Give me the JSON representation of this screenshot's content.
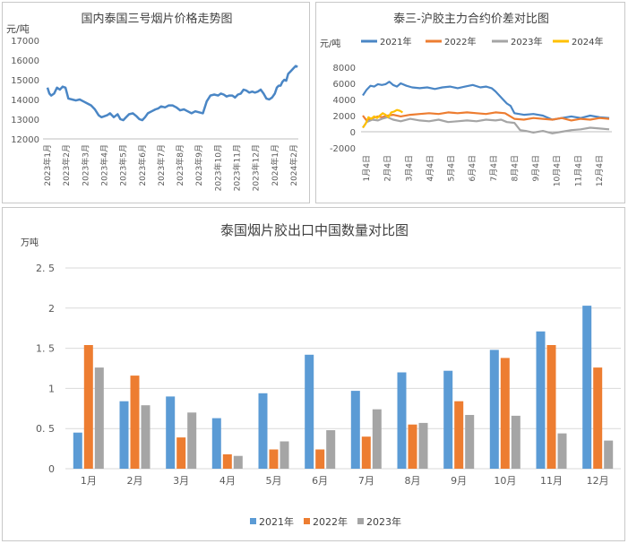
{
  "chart_data": [
    {
      "type": "line",
      "title": "国内泰国三号烟片价格走势图",
      "ylabel": "元/吨",
      "ylim": [
        12000,
        17000
      ],
      "y_ticks": [
        "17000",
        "16000",
        "15000",
        "14000",
        "13000",
        "12000"
      ],
      "x_ticks": [
        "2023年1月",
        "2023年2月",
        "2023年3月",
        "2023年4月",
        "2023年5月",
        "2023年6月",
        "2023年7月",
        "2023年8月",
        "2023年9月",
        "2023年10月",
        "2023年11月",
        "2023年12月",
        "2024年1月",
        "2024年2月"
      ],
      "series": [
        {
          "color": "#4a86c5",
          "x": [
            0,
            0.1,
            0.2,
            0.35,
            0.5,
            0.65,
            0.8,
            0.95,
            1.1,
            1.3,
            1.5,
            1.7,
            1.9,
            2.1,
            2.3,
            2.5,
            2.7,
            2.85,
            3.0,
            3.15,
            3.3,
            3.5,
            3.7,
            3.85,
            4.0,
            4.15,
            4.3,
            4.5,
            4.7,
            4.85,
            5.0,
            5.15,
            5.3,
            5.5,
            5.7,
            5.85,
            6.0,
            6.2,
            6.4,
            6.6,
            6.8,
            7.0,
            7.2,
            7.4,
            7.6,
            7.8,
            8.0,
            8.2,
            8.4,
            8.6,
            8.8,
            9.0,
            9.15,
            9.3,
            9.45,
            9.6,
            9.75,
            9.9,
            10.05,
            10.2,
            10.35,
            10.5,
            10.65,
            10.8,
            10.95,
            11.1,
            11.25,
            11.4,
            11.55,
            11.7,
            11.85,
            12.0,
            12.1,
            12.2,
            12.3,
            12.4,
            12.5,
            12.6,
            12.7,
            12.8,
            12.9,
            13.0,
            13.1,
            13.2
          ],
          "y": [
            14600,
            14300,
            14200,
            14300,
            14600,
            14500,
            14650,
            14600,
            14050,
            14000,
            13950,
            14000,
            13900,
            13800,
            13700,
            13500,
            13200,
            13100,
            13150,
            13200,
            13300,
            13100,
            13250,
            13000,
            12950,
            13100,
            13250,
            13300,
            13150,
            13000,
            12950,
            13100,
            13300,
            13400,
            13500,
            13550,
            13650,
            13600,
            13700,
            13700,
            13600,
            13450,
            13500,
            13400,
            13300,
            13400,
            13350,
            13300,
            13900,
            14200,
            14250,
            14200,
            14300,
            14250,
            14150,
            14200,
            14200,
            14100,
            14250,
            14300,
            14500,
            14450,
            14350,
            14400,
            14350,
            14400,
            14500,
            14300,
            14050,
            14000,
            14100,
            14300,
            14600,
            14700,
            14700,
            14900,
            15000,
            14950,
            15300,
            15400,
            15500,
            15600,
            15700,
            15650
          ]
        }
      ]
    },
    {
      "type": "line",
      "title": "泰三-沪胶主力合约价差对比图",
      "ylabel": "元/吨",
      "legend": "top",
      "ylim": [
        -2000,
        8000
      ],
      "y_ticks": [
        "8000",
        "6000",
        "4000",
        "2000",
        "0",
        "-2000"
      ],
      "x_ticks": [
        "1月4日",
        "2月4日",
        "3月4日",
        "4月4日",
        "5月4日",
        "6月4日",
        "7月4日",
        "8月4日",
        "9月4日",
        "10月4日",
        "11月4日",
        "12月4日"
      ],
      "series": [
        {
          "name": "2021年",
          "color": "#4a86c5",
          "x": [
            0,
            0.2,
            0.4,
            0.6,
            0.8,
            1.0,
            1.2,
            1.4,
            1.6,
            1.8,
            2.0,
            2.3,
            2.6,
            3.0,
            3.4,
            3.8,
            4.2,
            4.6,
            5.0,
            5.4,
            5.8,
            6.2,
            6.5,
            6.8,
            7.0,
            7.2,
            7.4,
            7.6,
            7.8,
            8.0,
            8.5,
            9.0,
            9.5,
            10.0,
            10.5,
            11.0,
            11.5,
            12.0,
            12.5,
            13.0
          ],
          "y": [
            4500,
            5200,
            5700,
            5600,
            5900,
            5800,
            5900,
            6200,
            5800,
            5600,
            6000,
            5700,
            5500,
            5400,
            5500,
            5300,
            5500,
            5600,
            5400,
            5600,
            5800,
            5500,
            5600,
            5400,
            5000,
            4500,
            4000,
            3500,
            3200,
            2300,
            2100,
            2200,
            2000,
            1500,
            1700,
            1900,
            1700,
            2000,
            1800,
            1700
          ]
        },
        {
          "name": "2022年",
          "color": "#ed7d31",
          "x": [
            0,
            0.2,
            0.5,
            0.8,
            1.0,
            1.3,
            1.6,
            2.0,
            2.5,
            3.0,
            3.5,
            4.0,
            4.5,
            5.0,
            5.5,
            6.0,
            6.5,
            7.0,
            7.5,
            8.0,
            8.5,
            9.0,
            9.5,
            10.0,
            10.5,
            11.0,
            11.5,
            12.0,
            12.5,
            13.0
          ],
          "y": [
            2000,
            1400,
            1700,
            1900,
            1800,
            2000,
            2100,
            1900,
            2100,
            2200,
            2300,
            2200,
            2400,
            2300,
            2400,
            2300,
            2200,
            2400,
            2300,
            1600,
            1500,
            1700,
            1600,
            1500,
            1700,
            1400,
            1600,
            1500,
            1700,
            1600
          ]
        },
        {
          "name": "2023年",
          "color": "#a5a5a5",
          "x": [
            0,
            0.2,
            0.5,
            0.8,
            1.0,
            1.3,
            1.6,
            2.0,
            2.5,
            3.0,
            3.5,
            4.0,
            4.5,
            5.0,
            5.5,
            6.0,
            6.5,
            7.0,
            7.3,
            7.6,
            8.0,
            8.3,
            8.6,
            9.0,
            9.5,
            10.0,
            10.5,
            11.0,
            11.5,
            12.0,
            12.5,
            13.0
          ],
          "y": [
            500,
            1200,
            1500,
            1400,
            1600,
            1800,
            1500,
            1300,
            1600,
            1400,
            1300,
            1500,
            1200,
            1300,
            1400,
            1300,
            1500,
            1400,
            1500,
            1200,
            1100,
            200,
            100,
            -100,
            100,
            -200,
            0,
            200,
            300,
            500,
            400,
            300
          ]
        },
        {
          "name": "2024年",
          "color": "#ffc000",
          "x": [
            0,
            0.15,
            0.3,
            0.45,
            0.6,
            0.75,
            0.9,
            1.05,
            1.2,
            1.35,
            1.5,
            1.65,
            1.8,
            1.95,
            2.1
          ],
          "y": [
            500,
            1000,
            1800,
            1600,
            1900,
            1700,
            2000,
            2300,
            2100,
            1800,
            2400,
            2500,
            2700,
            2600,
            2400
          ]
        }
      ]
    },
    {
      "type": "bar",
      "title": "泰国烟片胶出口中国数量对比图",
      "ylabel": "万吨",
      "legend": "bottom",
      "ylim": [
        0,
        2.5
      ],
      "y_ticks": [
        "2. 5",
        "2",
        "1. 5",
        "1",
        "0. 5",
        "0"
      ],
      "categories": [
        "1月",
        "2月",
        "3月",
        "4月",
        "5月",
        "6月",
        "7月",
        "8月",
        "9月",
        "10月",
        "11月",
        "12月"
      ],
      "series": [
        {
          "name": "2021年",
          "color": "#5b9bd5",
          "values": [
            0.45,
            0.84,
            0.9,
            0.63,
            0.94,
            1.42,
            0.97,
            1.2,
            1.22,
            1.48,
            1.71,
            2.03
          ]
        },
        {
          "name": "2022年",
          "color": "#ed7d31",
          "values": [
            1.54,
            1.16,
            0.39,
            0.18,
            0.24,
            0.24,
            0.4,
            0.55,
            0.84,
            1.38,
            1.54,
            1.26
          ]
        },
        {
          "name": "2023年",
          "color": "#a5a5a5",
          "values": [
            1.26,
            0.79,
            0.7,
            0.16,
            0.34,
            0.48,
            0.74,
            0.57,
            0.67,
            0.66,
            0.44,
            0.35
          ]
        }
      ]
    }
  ]
}
